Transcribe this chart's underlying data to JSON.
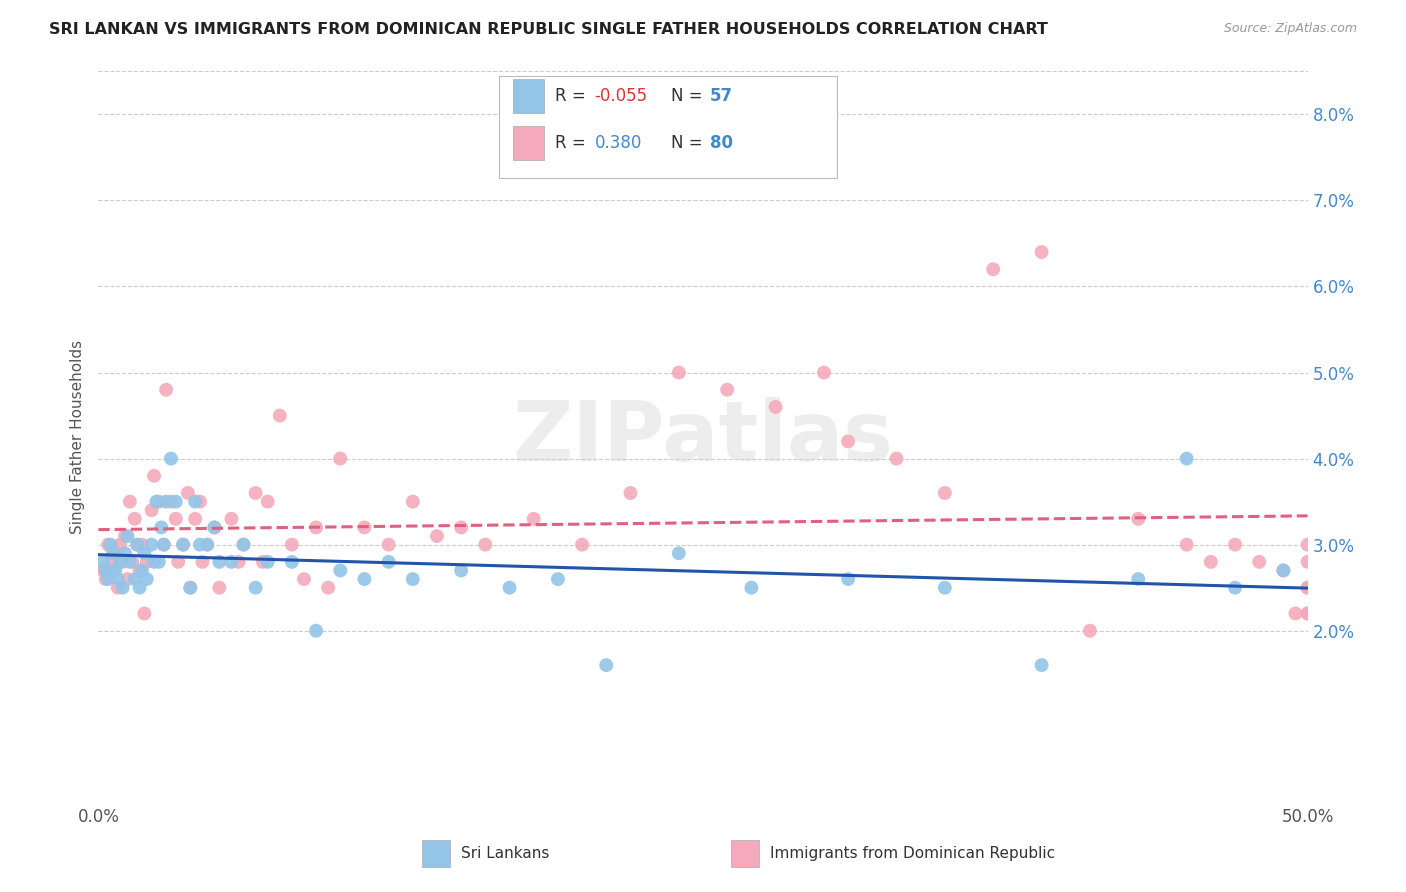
{
  "title": "SRI LANKAN VS IMMIGRANTS FROM DOMINICAN REPUBLIC SINGLE FATHER HOUSEHOLDS CORRELATION CHART",
  "source": "Source: ZipAtlas.com",
  "ylabel": "Single Father Households",
  "sri_color": "#92C5E8",
  "dom_color": "#F4AABA",
  "sri_line_color": "#2255AA",
  "dom_line_color": "#E06080",
  "watermark": "ZIPatlas",
  "sri_R": -0.055,
  "sri_N": 57,
  "dom_R": 0.38,
  "dom_N": 80,
  "y_tick_vals": [
    0.0,
    0.01,
    0.02,
    0.03,
    0.04,
    0.05,
    0.06,
    0.07,
    0.08
  ],
  "y_tick_labels": [
    "",
    "",
    "2.0%",
    "3.0%",
    "4.0%",
    "5.0%",
    "6.0%",
    "7.0%",
    "8.0%"
  ],
  "x_tick_vals": [
    0.0,
    0.05,
    0.1,
    0.15,
    0.2,
    0.25,
    0.3,
    0.35,
    0.4,
    0.45,
    0.5
  ],
  "x_tick_labels": [
    "0.0%",
    "",
    "",
    "",
    "",
    "",
    "",
    "",
    "",
    "",
    "50.0%"
  ],
  "ylim_lo": 0.0,
  "ylim_hi": 0.085,
  "xlim_lo": 0.0,
  "xlim_hi": 0.5,
  "sri_x": [
    0.002,
    0.003,
    0.004,
    0.005,
    0.006,
    0.007,
    0.008,
    0.009,
    0.01,
    0.011,
    0.012,
    0.013,
    0.015,
    0.016,
    0.017,
    0.018,
    0.019,
    0.02,
    0.022,
    0.023,
    0.024,
    0.025,
    0.026,
    0.027,
    0.028,
    0.03,
    0.032,
    0.035,
    0.038,
    0.04,
    0.042,
    0.045,
    0.048,
    0.05,
    0.055,
    0.06,
    0.065,
    0.07,
    0.08,
    0.09,
    0.1,
    0.11,
    0.12,
    0.13,
    0.15,
    0.17,
    0.19,
    0.21,
    0.24,
    0.27,
    0.31,
    0.35,
    0.39,
    0.43,
    0.45,
    0.47,
    0.49
  ],
  "sri_y": [
    0.028,
    0.027,
    0.026,
    0.03,
    0.029,
    0.027,
    0.026,
    0.028,
    0.025,
    0.029,
    0.031,
    0.028,
    0.026,
    0.03,
    0.025,
    0.027,
    0.029,
    0.026,
    0.03,
    0.028,
    0.035,
    0.028,
    0.032,
    0.03,
    0.035,
    0.04,
    0.035,
    0.03,
    0.025,
    0.035,
    0.03,
    0.03,
    0.032,
    0.028,
    0.028,
    0.03,
    0.025,
    0.028,
    0.028,
    0.02,
    0.027,
    0.026,
    0.028,
    0.026,
    0.027,
    0.025,
    0.026,
    0.016,
    0.029,
    0.025,
    0.026,
    0.025,
    0.016,
    0.026,
    0.04,
    0.025,
    0.027
  ],
  "dom_x": [
    0.002,
    0.003,
    0.004,
    0.005,
    0.006,
    0.007,
    0.008,
    0.009,
    0.01,
    0.011,
    0.012,
    0.013,
    0.014,
    0.015,
    0.016,
    0.017,
    0.018,
    0.019,
    0.02,
    0.022,
    0.023,
    0.025,
    0.027,
    0.028,
    0.03,
    0.032,
    0.033,
    0.035,
    0.037,
    0.038,
    0.04,
    0.042,
    0.043,
    0.045,
    0.048,
    0.05,
    0.055,
    0.058,
    0.06,
    0.065,
    0.068,
    0.07,
    0.075,
    0.08,
    0.085,
    0.09,
    0.095,
    0.1,
    0.11,
    0.12,
    0.13,
    0.14,
    0.15,
    0.16,
    0.18,
    0.2,
    0.22,
    0.24,
    0.26,
    0.28,
    0.3,
    0.31,
    0.33,
    0.35,
    0.37,
    0.39,
    0.41,
    0.43,
    0.45,
    0.46,
    0.47,
    0.48,
    0.49,
    0.495,
    0.5,
    0.5,
    0.5,
    0.5,
    0.5,
    0.5
  ],
  "dom_y": [
    0.027,
    0.026,
    0.03,
    0.028,
    0.027,
    0.029,
    0.025,
    0.03,
    0.028,
    0.031,
    0.026,
    0.035,
    0.028,
    0.033,
    0.03,
    0.027,
    0.03,
    0.022,
    0.028,
    0.034,
    0.038,
    0.035,
    0.03,
    0.048,
    0.035,
    0.033,
    0.028,
    0.03,
    0.036,
    0.025,
    0.033,
    0.035,
    0.028,
    0.03,
    0.032,
    0.025,
    0.033,
    0.028,
    0.03,
    0.036,
    0.028,
    0.035,
    0.045,
    0.03,
    0.026,
    0.032,
    0.025,
    0.04,
    0.032,
    0.03,
    0.035,
    0.031,
    0.032,
    0.03,
    0.033,
    0.03,
    0.036,
    0.05,
    0.048,
    0.046,
    0.05,
    0.042,
    0.04,
    0.036,
    0.062,
    0.064,
    0.02,
    0.033,
    0.03,
    0.028,
    0.03,
    0.028,
    0.027,
    0.022,
    0.03,
    0.028,
    0.025,
    0.022,
    0.025,
    0.022
  ]
}
